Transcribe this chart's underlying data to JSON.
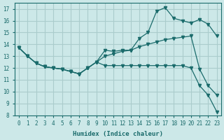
{
  "xlabel": "Humidex (Indice chaleur)",
  "bg_color": "#cce8e8",
  "grid_color": "#aacccc",
  "line_color": "#1a6b6b",
  "line1": {
    "x": [
      0,
      1,
      2,
      3,
      4,
      5,
      6,
      7,
      8,
      9,
      10,
      11,
      12,
      13,
      14,
      15,
      16,
      17,
      18,
      19,
      20,
      21,
      22,
      23
    ],
    "y": [
      13.7,
      13.0,
      12.4,
      12.1,
      12.0,
      11.9,
      11.7,
      11.5,
      12.0,
      12.5,
      13.5,
      13.4,
      13.5,
      13.5,
      14.5,
      15.0,
      16.8,
      17.1,
      16.2,
      16.0,
      15.8,
      16.1,
      15.7,
      14.7
    ]
  },
  "line2": {
    "x": [
      0,
      1,
      2,
      3,
      4,
      5,
      6,
      7,
      8,
      9,
      10,
      11,
      12,
      13,
      14,
      15,
      16,
      17,
      18,
      19,
      20,
      21,
      22,
      23
    ],
    "y": [
      13.7,
      13.0,
      12.4,
      12.1,
      12.0,
      11.9,
      11.7,
      11.5,
      12.0,
      12.5,
      13.0,
      13.2,
      13.4,
      13.5,
      13.8,
      14.0,
      14.2,
      14.4,
      14.5,
      14.6,
      14.7,
      11.9,
      10.5,
      9.7
    ]
  },
  "line3": {
    "x": [
      0,
      1,
      2,
      3,
      4,
      5,
      6,
      7,
      8,
      9,
      10,
      11,
      12,
      13,
      14,
      15,
      16,
      17,
      18,
      19,
      20,
      21,
      22,
      23
    ],
    "y": [
      13.7,
      13.0,
      12.4,
      12.1,
      12.0,
      11.9,
      11.7,
      11.5,
      12.0,
      12.5,
      12.2,
      12.2,
      12.2,
      12.2,
      12.2,
      12.2,
      12.2,
      12.2,
      12.2,
      12.2,
      12.0,
      10.5,
      9.7,
      8.3
    ]
  },
  "ylim": [
    8,
    17.5
  ],
  "xlim": [
    -0.5,
    23.5
  ],
  "yticks": [
    8,
    9,
    10,
    11,
    12,
    13,
    14,
    15,
    16,
    17
  ],
  "xticks": [
    0,
    1,
    2,
    3,
    4,
    5,
    6,
    7,
    8,
    9,
    10,
    11,
    12,
    13,
    14,
    15,
    16,
    17,
    18,
    19,
    20,
    21,
    22,
    23
  ]
}
